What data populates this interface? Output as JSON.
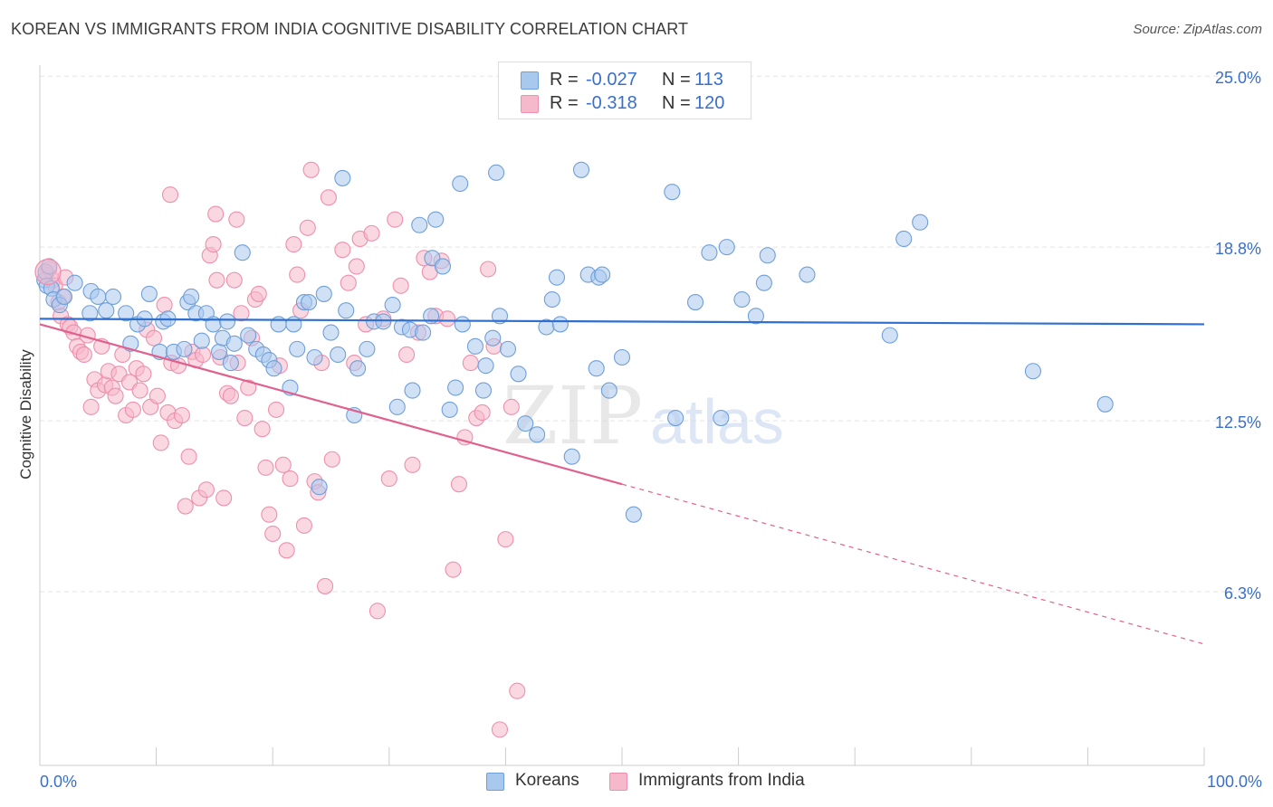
{
  "title": "KOREAN VS IMMIGRANTS FROM INDIA COGNITIVE DISABILITY CORRELATION CHART",
  "source": "Source: ZipAtlas.com",
  "watermark": {
    "zip": "ZIP",
    "atlas": "atlas"
  },
  "legend_top": [
    {
      "r_label": "R =",
      "r_value": "-0.027",
      "n_label": "N =",
      "n_value": "113"
    },
    {
      "r_label": "R =",
      "r_value": "-0.318",
      "n_label": "N =",
      "n_value": "120"
    }
  ],
  "legend_bottom": [
    "Koreans",
    "Immigrants from India"
  ],
  "colors": {
    "koreans_fill": "#a9c8ee",
    "koreans_stroke": "#6f9fd8",
    "koreans_line": "#2f6fcf",
    "india_fill": "#f6b8cb",
    "india_stroke": "#ee8fae",
    "india_line": "#e0608e",
    "axis_label": "#3a6fc9",
    "grid": "#e3e3e3"
  },
  "chart_data": {
    "type": "scatter",
    "title": "KOREAN VS IMMIGRANTS FROM INDIA COGNITIVE DISABILITY CORRELATION CHART",
    "xlabel": "",
    "ylabel": "Cognitive Disability",
    "xlim": [
      0,
      100
    ],
    "ylim": [
      0,
      25.4
    ],
    "x_tick_labels": [
      "0.0%",
      "100.0%"
    ],
    "y_ticks": [
      6.3,
      12.5,
      18.8,
      25.0
    ],
    "y_tick_labels": [
      "6.3%",
      "12.5%",
      "18.8%",
      "25.0%"
    ],
    "grid": true,
    "legend_position": "top-center",
    "series": [
      {
        "name": "Koreans",
        "r": -0.027,
        "n": 113,
        "trend": {
          "x": [
            0,
            100
          ],
          "y": [
            16.2,
            16.0
          ],
          "dashed_from": null
        },
        "points": [
          [
            0.4,
            17.6
          ],
          [
            0.5,
            17.9
          ],
          [
            0.6,
            17.4
          ],
          [
            0.8,
            18.1
          ],
          [
            1.0,
            17.3
          ],
          [
            1.2,
            16.9
          ],
          [
            1.7,
            16.7
          ],
          [
            2.1,
            17.0
          ],
          [
            3.0,
            17.5
          ],
          [
            4.3,
            16.4
          ],
          [
            4.4,
            17.2
          ],
          [
            5.0,
            17.0
          ],
          [
            5.7,
            16.5
          ],
          [
            6.3,
            17.0
          ],
          [
            7.4,
            16.4
          ],
          [
            7.8,
            15.3
          ],
          [
            8.4,
            16.0
          ],
          [
            9.0,
            16.2
          ],
          [
            9.4,
            17.1
          ],
          [
            10.3,
            15.0
          ],
          [
            10.6,
            16.1
          ],
          [
            11.0,
            16.2
          ],
          [
            11.5,
            15.0
          ],
          [
            12.4,
            15.1
          ],
          [
            12.7,
            16.8
          ],
          [
            13.0,
            17.0
          ],
          [
            13.4,
            16.4
          ],
          [
            13.9,
            15.4
          ],
          [
            14.3,
            16.4
          ],
          [
            14.9,
            16.0
          ],
          [
            15.4,
            15.0
          ],
          [
            15.7,
            15.5
          ],
          [
            16.1,
            16.1
          ],
          [
            16.4,
            14.6
          ],
          [
            16.7,
            15.3
          ],
          [
            17.4,
            18.6
          ],
          [
            17.9,
            15.6
          ],
          [
            18.6,
            15.1
          ],
          [
            19.2,
            14.9
          ],
          [
            19.7,
            14.7
          ],
          [
            20.1,
            14.4
          ],
          [
            20.5,
            16.0
          ],
          [
            21.5,
            13.7
          ],
          [
            21.8,
            16.0
          ],
          [
            22.1,
            15.1
          ],
          [
            22.7,
            16.8
          ],
          [
            23.1,
            16.8
          ],
          [
            23.6,
            14.8
          ],
          [
            24.4,
            17.1
          ],
          [
            25.0,
            15.7
          ],
          [
            25.6,
            14.9
          ],
          [
            26.0,
            21.3
          ],
          [
            26.3,
            16.5
          ],
          [
            27.0,
            12.7
          ],
          [
            27.3,
            14.4
          ],
          [
            28.1,
            15.1
          ],
          [
            28.7,
            16.1
          ],
          [
            29.5,
            16.1
          ],
          [
            30.3,
            16.7
          ],
          [
            30.7,
            13.0
          ],
          [
            31.1,
            15.9
          ],
          [
            31.8,
            15.8
          ],
          [
            32.0,
            13.6
          ],
          [
            32.6,
            19.6
          ],
          [
            32.9,
            15.7
          ],
          [
            33.6,
            16.3
          ],
          [
            33.7,
            18.4
          ],
          [
            34.0,
            19.8
          ],
          [
            34.6,
            18.1
          ],
          [
            35.2,
            12.9
          ],
          [
            35.7,
            13.7
          ],
          [
            36.1,
            21.1
          ],
          [
            36.3,
            16.0
          ],
          [
            37.4,
            15.2
          ],
          [
            38.1,
            13.6
          ],
          [
            38.3,
            14.5
          ],
          [
            38.9,
            15.5
          ],
          [
            39.2,
            21.5
          ],
          [
            39.5,
            16.3
          ],
          [
            40.2,
            15.1
          ],
          [
            41.1,
            14.2
          ],
          [
            41.7,
            12.4
          ],
          [
            42.7,
            12.0
          ],
          [
            43.5,
            15.9
          ],
          [
            44.0,
            16.9
          ],
          [
            44.4,
            17.7
          ],
          [
            44.7,
            16.0
          ],
          [
            45.7,
            11.2
          ],
          [
            46.5,
            21.6
          ],
          [
            47.1,
            17.8
          ],
          [
            47.8,
            14.4
          ],
          [
            48.0,
            17.7
          ],
          [
            48.3,
            17.8
          ],
          [
            48.9,
            13.6
          ],
          [
            50.0,
            14.8
          ],
          [
            51.0,
            9.1
          ],
          [
            54.3,
            20.8
          ],
          [
            54.6,
            12.6
          ],
          [
            56.3,
            16.8
          ],
          [
            57.5,
            18.6
          ],
          [
            58.5,
            12.6
          ],
          [
            59.0,
            18.8
          ],
          [
            60.3,
            16.9
          ],
          [
            61.5,
            16.3
          ],
          [
            62.2,
            17.5
          ],
          [
            62.5,
            18.5
          ],
          [
            65.9,
            17.8
          ],
          [
            73.0,
            15.6
          ],
          [
            74.2,
            19.1
          ],
          [
            75.6,
            19.7
          ],
          [
            85.3,
            14.3
          ],
          [
            91.5,
            13.1
          ],
          [
            24.0,
            10.1
          ]
        ]
      },
      {
        "name": "Immigrants from India",
        "r": -0.318,
        "n": 120,
        "trend": {
          "x": [
            0,
            100
          ],
          "y": [
            16.0,
            4.4
          ],
          "dashed_from": 50
        },
        "points": [
          [
            0.5,
            17.8
          ],
          [
            0.8,
            18.0
          ],
          [
            1.1,
            17.6
          ],
          [
            1.3,
            17.4
          ],
          [
            1.6,
            16.8
          ],
          [
            1.8,
            16.3
          ],
          [
            2.0,
            17.0
          ],
          [
            2.2,
            17.7
          ],
          [
            2.4,
            16.0
          ],
          [
            2.6,
            15.9
          ],
          [
            2.9,
            15.7
          ],
          [
            3.2,
            15.2
          ],
          [
            3.5,
            15.0
          ],
          [
            3.8,
            14.9
          ],
          [
            4.1,
            15.6
          ],
          [
            4.4,
            13.0
          ],
          [
            4.7,
            14.0
          ],
          [
            5.0,
            13.6
          ],
          [
            5.3,
            15.2
          ],
          [
            5.6,
            13.8
          ],
          [
            5.9,
            14.3
          ],
          [
            6.2,
            13.7
          ],
          [
            6.5,
            13.4
          ],
          [
            6.8,
            14.2
          ],
          [
            7.1,
            14.9
          ],
          [
            7.4,
            12.7
          ],
          [
            7.7,
            13.9
          ],
          [
            8.0,
            12.9
          ],
          [
            8.3,
            14.4
          ],
          [
            8.6,
            13.6
          ],
          [
            8.9,
            14.2
          ],
          [
            9.2,
            15.8
          ],
          [
            9.5,
            13.0
          ],
          [
            9.8,
            15.5
          ],
          [
            10.1,
            13.4
          ],
          [
            10.4,
            11.7
          ],
          [
            10.7,
            16.7
          ],
          [
            11.0,
            12.8
          ],
          [
            11.3,
            14.6
          ],
          [
            11.6,
            12.5
          ],
          [
            11.9,
            14.5
          ],
          [
            12.2,
            12.7
          ],
          [
            12.5,
            9.4
          ],
          [
            12.8,
            11.2
          ],
          [
            13.1,
            15.0
          ],
          [
            13.4,
            14.7
          ],
          [
            13.7,
            9.7
          ],
          [
            14.0,
            14.9
          ],
          [
            14.3,
            10.0
          ],
          [
            14.6,
            18.5
          ],
          [
            14.9,
            18.9
          ],
          [
            15.2,
            17.6
          ],
          [
            15.5,
            14.8
          ],
          [
            15.8,
            9.7
          ],
          [
            16.1,
            13.5
          ],
          [
            16.4,
            13.4
          ],
          [
            16.7,
            17.6
          ],
          [
            17.0,
            14.6
          ],
          [
            17.3,
            16.4
          ],
          [
            17.6,
            12.6
          ],
          [
            17.9,
            13.7
          ],
          [
            18.2,
            15.5
          ],
          [
            18.5,
            16.9
          ],
          [
            18.8,
            17.1
          ],
          [
            19.1,
            12.2
          ],
          [
            19.4,
            10.8
          ],
          [
            19.7,
            9.1
          ],
          [
            20.0,
            8.4
          ],
          [
            20.3,
            12.9
          ],
          [
            20.6,
            14.5
          ],
          [
            20.9,
            10.9
          ],
          [
            21.2,
            7.8
          ],
          [
            21.5,
            10.4
          ],
          [
            21.8,
            18.9
          ],
          [
            22.1,
            17.8
          ],
          [
            22.4,
            16.5
          ],
          [
            22.7,
            8.7
          ],
          [
            23.0,
            19.5
          ],
          [
            23.3,
            21.6
          ],
          [
            23.6,
            10.3
          ],
          [
            23.9,
            9.9
          ],
          [
            24.2,
            14.6
          ],
          [
            24.5,
            6.5
          ],
          [
            24.8,
            20.6
          ],
          [
            25.1,
            11.1
          ],
          [
            26.0,
            18.7
          ],
          [
            26.5,
            17.5
          ],
          [
            27.0,
            14.6
          ],
          [
            27.5,
            19.1
          ],
          [
            28.0,
            16.0
          ],
          [
            28.5,
            19.3
          ],
          [
            29.0,
            5.6
          ],
          [
            29.5,
            16.2
          ],
          [
            30.0,
            10.4
          ],
          [
            30.5,
            19.8
          ],
          [
            31.0,
            17.4
          ],
          [
            31.5,
            14.9
          ],
          [
            32.0,
            10.9
          ],
          [
            32.5,
            15.7
          ],
          [
            33.0,
            18.4
          ],
          [
            33.5,
            17.9
          ],
          [
            34.0,
            16.3
          ],
          [
            34.5,
            18.3
          ],
          [
            35.0,
            16.2
          ],
          [
            35.5,
            7.1
          ],
          [
            36.0,
            10.2
          ],
          [
            36.5,
            11.9
          ],
          [
            37.0,
            14.6
          ],
          [
            37.5,
            12.6
          ],
          [
            38.0,
            12.8
          ],
          [
            38.5,
            18.0
          ],
          [
            39.0,
            15.2
          ],
          [
            39.5,
            1.3
          ],
          [
            40.0,
            8.2
          ],
          [
            40.5,
            13.0
          ],
          [
            41.0,
            2.7
          ],
          [
            11.2,
            20.7
          ],
          [
            15.1,
            20.0
          ],
          [
            16.9,
            19.8
          ],
          [
            27.2,
            18.1
          ]
        ]
      }
    ]
  }
}
